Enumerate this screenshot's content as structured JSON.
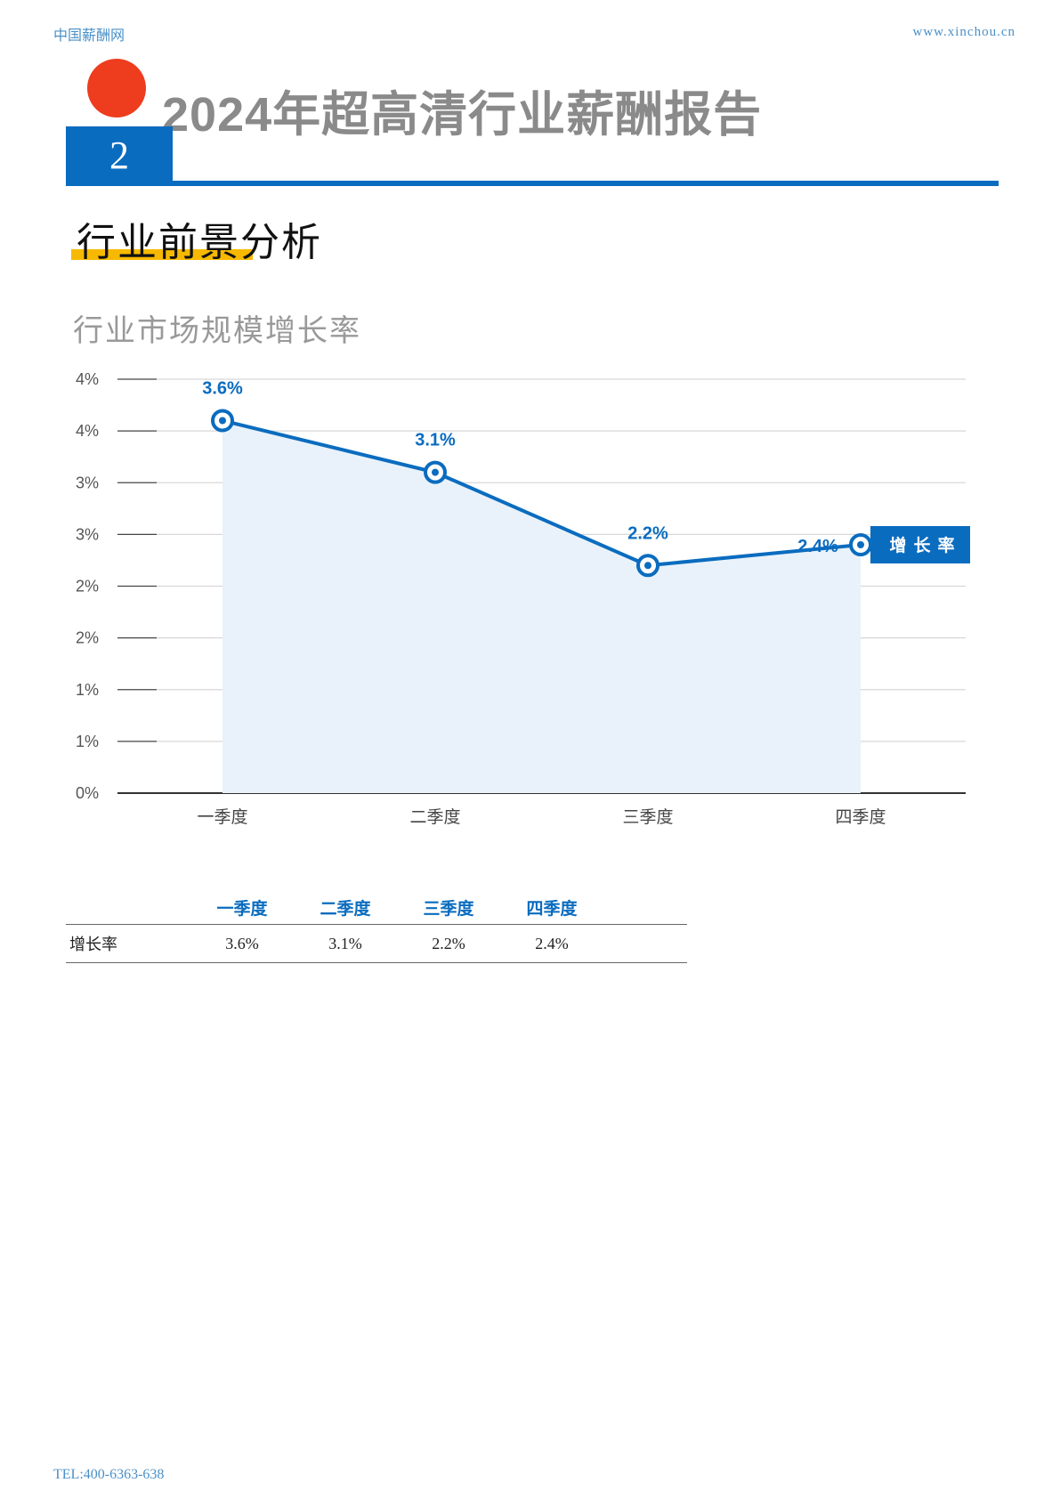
{
  "header": {
    "site_name": "中国薪酬网",
    "site_url": "www.xinchou.cn"
  },
  "report_title": "2024年超高清行业薪酬报告",
  "chapter_number": "2",
  "section_title": "行业前景分析",
  "chart_title": "行业市场规模增长率",
  "chart_data": {
    "type": "line",
    "categories": [
      "一季度",
      "二季度",
      "三季度",
      "四季度"
    ],
    "series": [
      {
        "name": "增长率",
        "values": [
          3.6,
          3.1,
          2.2,
          2.4
        ],
        "labels": [
          "3.6%",
          "3.1%",
          "2.2%",
          "2.4%"
        ],
        "color": "#0a6cbf"
      }
    ],
    "y_ticks": [
      "0%",
      "1%",
      "1%",
      "2%",
      "2%",
      "3%",
      "3%",
      "4%",
      "4%"
    ],
    "ylim": [
      0,
      4.0
    ],
    "grid": true,
    "area_fill": "#e9f2fa",
    "legend_position": "right"
  },
  "table": {
    "headers": [
      "",
      "一季度",
      "二季度",
      "三季度",
      "四季度",
      ""
    ],
    "row_label": "增长率",
    "values": [
      "3.6%",
      "3.1%",
      "2.2%",
      "2.4%"
    ]
  },
  "footer": {
    "tel": "TEL:400-6363-638"
  }
}
